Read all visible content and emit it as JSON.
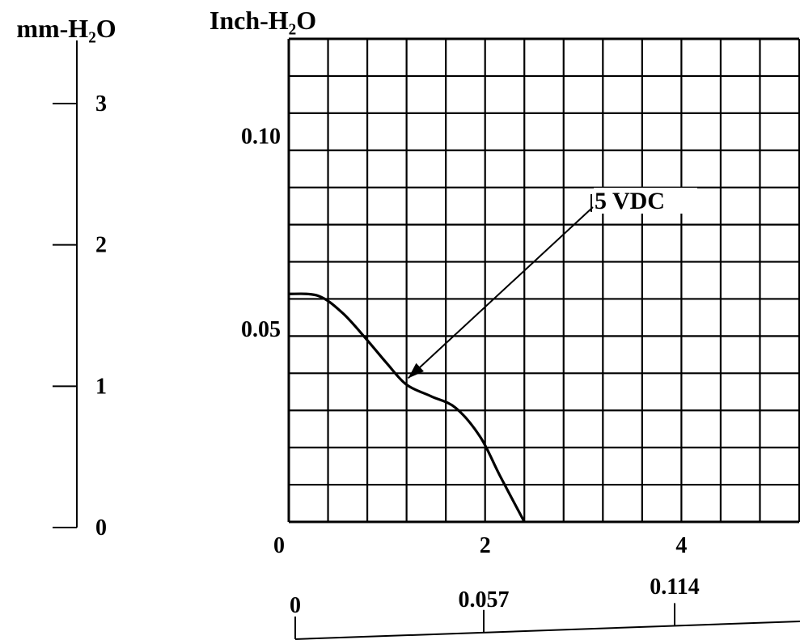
{
  "chart_data": {
    "type": "line",
    "title": "",
    "primary_y_axis": {
      "label": "Inch-H₂O",
      "ylim": [
        0,
        0.125
      ],
      "tick_labels": [
        {
          "value": 0.1,
          "text": "0.10"
        },
        {
          "value": 0.05,
          "text": "0.05"
        }
      ]
    },
    "secondary_y_axis": {
      "label": "mm-H₂O",
      "ylim": [
        0,
        3
      ],
      "tick_labels": [
        {
          "value": 3,
          "text": "3"
        },
        {
          "value": 2,
          "text": "2"
        },
        {
          "value": 1,
          "text": "1"
        },
        {
          "value": 0,
          "text": "0"
        }
      ]
    },
    "primary_x_axis": {
      "label": "",
      "xlim": [
        0,
        5.2
      ],
      "tick_labels": [
        {
          "value": 0,
          "text": "0"
        },
        {
          "value": 2,
          "text": "2"
        },
        {
          "value": 4,
          "text": "4"
        }
      ]
    },
    "secondary_x_axis": {
      "label": "",
      "tick_labels": [
        {
          "value": 0,
          "text": "0"
        },
        {
          "value": 0.057,
          "text": "0.057"
        },
        {
          "value": 0.114,
          "text": "0.114"
        }
      ]
    },
    "grid": true,
    "grid_divisions": {
      "x": 13,
      "y": 13
    },
    "series": [
      {
        "name": "5 VDC",
        "color": "#000000",
        "x": [
          0,
          0.3,
          0.55,
          0.8,
          1.0,
          1.2,
          1.45,
          1.7,
          1.95,
          2.15,
          2.4
        ],
        "y": [
          0.059,
          0.0585,
          0.054,
          0.047,
          0.041,
          0.0355,
          0.0325,
          0.0295,
          0.022,
          0.012,
          0.0
        ]
      }
    ],
    "annotations": [
      {
        "text": "5 VDC",
        "points_to": {
          "x": 1.15,
          "y": 0.0355
        }
      }
    ]
  }
}
